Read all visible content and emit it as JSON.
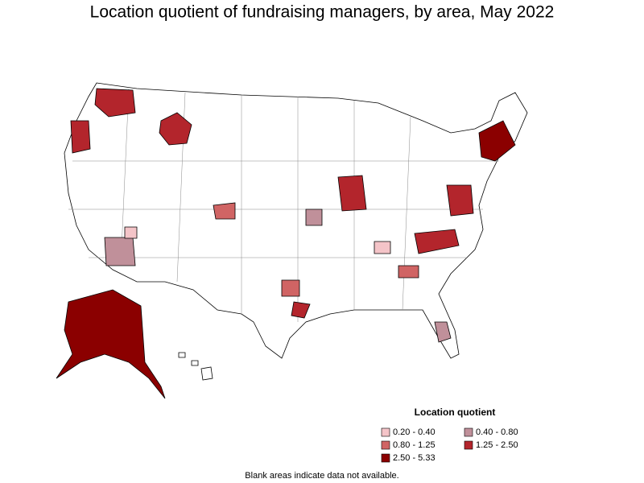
{
  "title": "Location quotient of fundraising managers, by area, May 2022",
  "legend": {
    "title": "Location quotient",
    "items": [
      {
        "label": "0.20 - 0.40",
        "color": "#f4c4c8"
      },
      {
        "label": "0.40 - 0.80",
        "color": "#c0909a"
      },
      {
        "label": "0.80 - 1.25",
        "color": "#d06464"
      },
      {
        "label": "1.25 - 2.50",
        "color": "#b3252c"
      },
      {
        "label": "2.50 - 5.33",
        "color": "#8b0000"
      }
    ]
  },
  "note": "Blank areas indicate data not available."
}
